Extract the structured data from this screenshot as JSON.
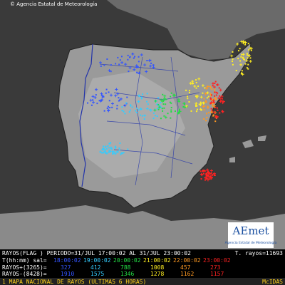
{
  "header": {
    "copyright": "© Agencia Estatal de Meteorología"
  },
  "logo": {
    "name": "AEmet",
    "subtitle": "Agencia Estatal de Meteorología"
  },
  "legend": {
    "period": "RAYOS(FLAG ) PERIODO=31/JUL 17:00:02 AL 31/JUL 23:00:02",
    "total": "T. rayos=11693",
    "time_label": "T(hh:mm) sal=",
    "positive_label": "RAYOS+(3265)=",
    "negative_label": "RAYOS-(8428)=",
    "periods": [
      {
        "time": "18:00:02",
        "color": "#3355ff",
        "positive": "327",
        "negative": "1910"
      },
      {
        "time": "19:00:02",
        "color": "#33ccff",
        "positive": "412",
        "negative": "1575"
      },
      {
        "time": "20:00:02",
        "color": "#22dd44",
        "positive": "788",
        "negative": "1346"
      },
      {
        "time": "21:00:02",
        "color": "#ffee22",
        "positive": "1008",
        "negative": "1278"
      },
      {
        "time": "22:00:02",
        "color": "#ff9922",
        "positive": "457",
        "negative": "1162"
      },
      {
        "time": "23:00:02",
        "color": "#ff2222",
        "positive": "273",
        "negative": "1157"
      }
    ]
  },
  "footer": {
    "title": "1 MAPA NACIONAL DE RAYOS (ULTIMAS 6 HORAS)",
    "source": "McIDAS"
  }
}
